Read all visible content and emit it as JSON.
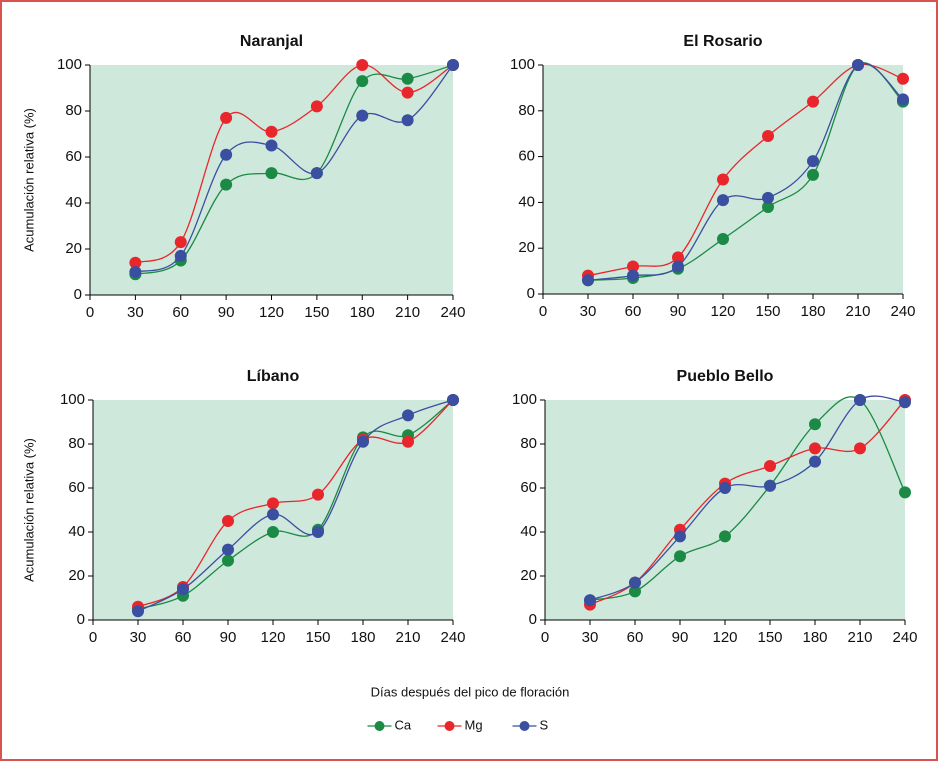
{
  "chart_data": [
    {
      "type": "line",
      "title": "Naranjal",
      "ylabel": "Acumulación relativa (%)",
      "x": [
        30,
        60,
        90,
        120,
        150,
        180,
        210,
        240
      ],
      "xlim": [
        0,
        240
      ],
      "xticks": [
        0,
        30,
        60,
        90,
        120,
        150,
        180,
        210,
        240
      ],
      "ylim": [
        0,
        100
      ],
      "yticks": [
        0,
        20,
        40,
        60,
        80,
        100
      ],
      "series": [
        {
          "name": "Ca",
          "color": "#1a8a45",
          "values": [
            9,
            15,
            48,
            53,
            53,
            93,
            94,
            100
          ]
        },
        {
          "name": "Mg",
          "color": "#e8262b",
          "values": [
            14,
            23,
            77,
            71,
            82,
            100,
            88,
            100
          ]
        },
        {
          "name": "S",
          "color": "#3a4fa0",
          "values": [
            10,
            17,
            61,
            65,
            53,
            78,
            76,
            100
          ]
        }
      ]
    },
    {
      "type": "line",
      "title": "El Rosario",
      "x": [
        30,
        60,
        90,
        120,
        150,
        180,
        210,
        240
      ],
      "xlim": [
        0,
        240
      ],
      "xticks": [
        0,
        30,
        60,
        90,
        120,
        150,
        180,
        210,
        240
      ],
      "ylim": [
        0,
        100
      ],
      "yticks": [
        0,
        20,
        40,
        60,
        80,
        100
      ],
      "series": [
        {
          "name": "Ca",
          "color": "#1a8a45",
          "values": [
            6,
            7,
            11,
            24,
            38,
            52,
            100,
            84
          ]
        },
        {
          "name": "Mg",
          "color": "#e8262b",
          "values": [
            8,
            12,
            16,
            50,
            69,
            84,
            100,
            94
          ]
        },
        {
          "name": "S",
          "color": "#3a4fa0",
          "values": [
            6,
            8,
            12,
            41,
            42,
            58,
            100,
            85
          ]
        }
      ]
    },
    {
      "type": "line",
      "title": "Líbano",
      "ylabel": "Acumulación relativa (%)",
      "x": [
        30,
        60,
        90,
        120,
        150,
        180,
        210,
        240
      ],
      "xlim": [
        0,
        240
      ],
      "xticks": [
        0,
        30,
        60,
        90,
        120,
        150,
        180,
        210,
        240
      ],
      "ylim": [
        0,
        100
      ],
      "yticks": [
        0,
        20,
        40,
        60,
        80,
        100
      ],
      "series": [
        {
          "name": "Ca",
          "color": "#1a8a45",
          "values": [
            5,
            11,
            27,
            40,
            41,
            83,
            84,
            100
          ]
        },
        {
          "name": "Mg",
          "color": "#e8262b",
          "values": [
            6,
            15,
            45,
            53,
            57,
            82,
            81,
            100
          ]
        },
        {
          "name": "S",
          "color": "#3a4fa0",
          "values": [
            4,
            14,
            32,
            48,
            40,
            81,
            93,
            100
          ]
        }
      ]
    },
    {
      "type": "line",
      "title": "Pueblo Bello",
      "x": [
        30,
        60,
        90,
        120,
        150,
        180,
        210,
        240
      ],
      "xlim": [
        0,
        240
      ],
      "xticks": [
        0,
        30,
        60,
        90,
        120,
        150,
        180,
        210,
        240
      ],
      "ylim": [
        0,
        100
      ],
      "yticks": [
        0,
        20,
        40,
        60,
        80,
        100
      ],
      "series": [
        {
          "name": "Ca",
          "color": "#1a8a45",
          "values": [
            9,
            13,
            29,
            38,
            61,
            89,
            100,
            58
          ]
        },
        {
          "name": "Mg",
          "color": "#e8262b",
          "values": [
            7,
            17,
            41,
            62,
            70,
            78,
            78,
            100
          ]
        },
        {
          "name": "S",
          "color": "#3a4fa0",
          "values": [
            9,
            17,
            38,
            60,
            61,
            72,
            100,
            99
          ]
        }
      ]
    }
  ],
  "xlabel": "Días después del pico de floración"
}
